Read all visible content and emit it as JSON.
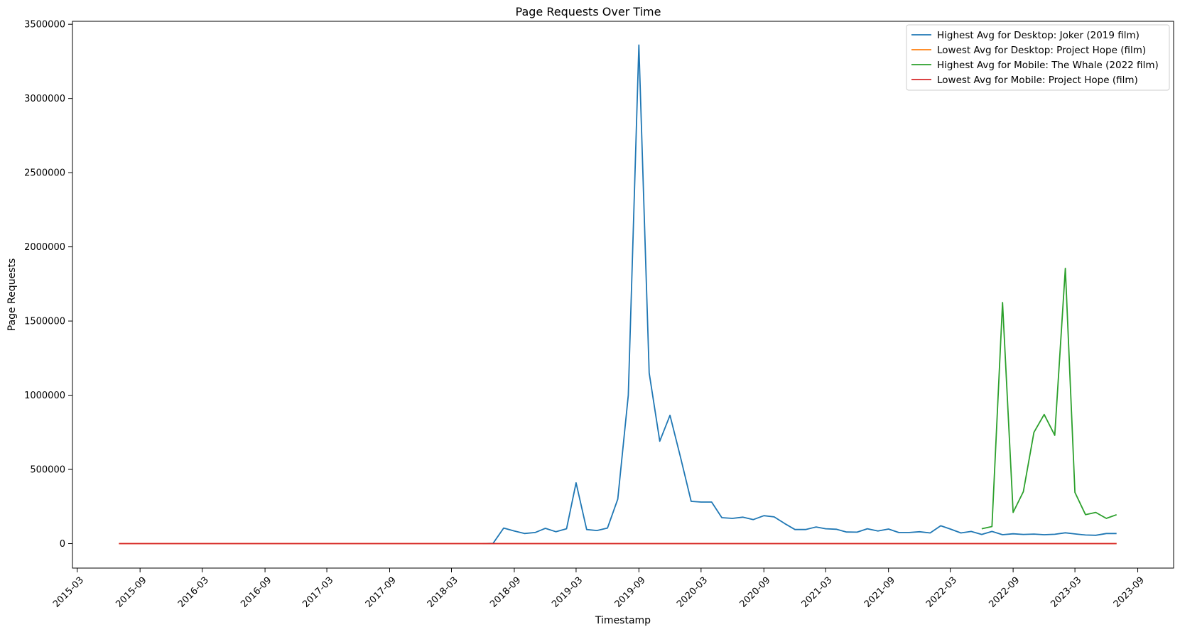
{
  "chart_data": {
    "type": "line",
    "title": "Page Requests Over Time",
    "xlabel": "Timestamp",
    "ylabel": "Page Requests",
    "xlim": [
      "2015-02-15",
      "2023-12-15"
    ],
    "ylim": [
      -165000,
      3520000
    ],
    "x_ticks": [
      "2015-03",
      "2015-09",
      "2016-03",
      "2016-09",
      "2017-03",
      "2017-09",
      "2018-03",
      "2018-09",
      "2019-03",
      "2019-09",
      "2020-03",
      "2020-09",
      "2021-03",
      "2021-09",
      "2022-03",
      "2022-09",
      "2023-03",
      "2023-09"
    ],
    "y_ticks": [
      0,
      500000,
      1000000,
      1500000,
      2000000,
      2500000,
      3000000,
      3500000
    ],
    "y_tick_labels": [
      "0",
      "500000",
      "1000000",
      "1500000",
      "2000000",
      "2500000",
      "3000000",
      "3500000"
    ],
    "legend_position": "top-right",
    "grid": false,
    "series": [
      {
        "name": "Highest Avg for Desktop: Joker (2019 film)",
        "color": "#1f77b4",
        "points": [
          [
            "2018-06-01",
            0
          ],
          [
            "2018-07-01",
            2000
          ],
          [
            "2018-08-01",
            105000
          ],
          [
            "2018-09-01",
            85000
          ],
          [
            "2018-10-01",
            68000
          ],
          [
            "2018-11-01",
            75000
          ],
          [
            "2018-12-01",
            103000
          ],
          [
            "2019-01-01",
            80000
          ],
          [
            "2019-02-01",
            100000
          ],
          [
            "2019-03-01",
            410000
          ],
          [
            "2019-04-01",
            95000
          ],
          [
            "2019-05-01",
            88000
          ],
          [
            "2019-06-01",
            105000
          ],
          [
            "2019-07-01",
            300000
          ],
          [
            "2019-08-01",
            1000000
          ],
          [
            "2019-09-01",
            3360000
          ],
          [
            "2019-10-01",
            1150000
          ],
          [
            "2019-11-01",
            690000
          ],
          [
            "2019-12-01",
            865000
          ],
          [
            "2020-01-01",
            580000
          ],
          [
            "2020-02-01",
            285000
          ],
          [
            "2020-03-01",
            280000
          ],
          [
            "2020-04-01",
            280000
          ],
          [
            "2020-05-01",
            175000
          ],
          [
            "2020-06-01",
            170000
          ],
          [
            "2020-07-01",
            178000
          ],
          [
            "2020-08-01",
            162000
          ],
          [
            "2020-09-01",
            188000
          ],
          [
            "2020-10-01",
            180000
          ],
          [
            "2020-11-01",
            135000
          ],
          [
            "2020-12-01",
            95000
          ],
          [
            "2021-01-01",
            95000
          ],
          [
            "2021-02-01",
            112000
          ],
          [
            "2021-03-01",
            100000
          ],
          [
            "2021-04-01",
            97000
          ],
          [
            "2021-05-01",
            78000
          ],
          [
            "2021-06-01",
            77000
          ],
          [
            "2021-07-01",
            100000
          ],
          [
            "2021-08-01",
            85000
          ],
          [
            "2021-09-01",
            98000
          ],
          [
            "2021-10-01",
            75000
          ],
          [
            "2021-11-01",
            75000
          ],
          [
            "2021-12-01",
            80000
          ],
          [
            "2022-01-01",
            72000
          ],
          [
            "2022-02-01",
            120000
          ],
          [
            "2022-03-01",
            98000
          ],
          [
            "2022-04-01",
            72000
          ],
          [
            "2022-05-01",
            82000
          ],
          [
            "2022-06-01",
            62000
          ],
          [
            "2022-07-01",
            82000
          ],
          [
            "2022-08-01",
            60000
          ],
          [
            "2022-09-01",
            66000
          ],
          [
            "2022-10-01",
            62000
          ],
          [
            "2022-11-01",
            64000
          ],
          [
            "2022-12-01",
            60000
          ],
          [
            "2023-01-01",
            63000
          ],
          [
            "2023-02-01",
            73000
          ],
          [
            "2023-03-01",
            65000
          ],
          [
            "2023-04-01",
            58000
          ],
          [
            "2023-05-01",
            56000
          ],
          [
            "2023-06-01",
            68000
          ],
          [
            "2023-07-01",
            68000
          ]
        ]
      },
      {
        "name": "Lowest Avg for Desktop: Project Hope (film)",
        "color": "#ff7f0e",
        "points": [
          [
            "2015-07-01",
            0
          ],
          [
            "2023-07-01",
            0
          ]
        ]
      },
      {
        "name": "Highest Avg for Mobile: The Whale (2022 film)",
        "color": "#2ca02c",
        "points": [
          [
            "2022-06-01",
            100000
          ],
          [
            "2022-07-01",
            115000
          ],
          [
            "2022-08-01",
            1625000
          ],
          [
            "2022-09-01",
            210000
          ],
          [
            "2022-10-01",
            350000
          ],
          [
            "2022-11-01",
            750000
          ],
          [
            "2022-12-01",
            870000
          ],
          [
            "2023-01-01",
            730000
          ],
          [
            "2023-02-01",
            1855000
          ],
          [
            "2023-03-01",
            345000
          ],
          [
            "2023-04-01",
            195000
          ],
          [
            "2023-05-01",
            210000
          ],
          [
            "2023-06-01",
            170000
          ],
          [
            "2023-07-01",
            195000
          ]
        ]
      },
      {
        "name": "Lowest Avg for Mobile: Project Hope (film)",
        "color": "#d62728",
        "points": [
          [
            "2015-07-01",
            0
          ],
          [
            "2023-07-01",
            0
          ]
        ]
      }
    ]
  }
}
